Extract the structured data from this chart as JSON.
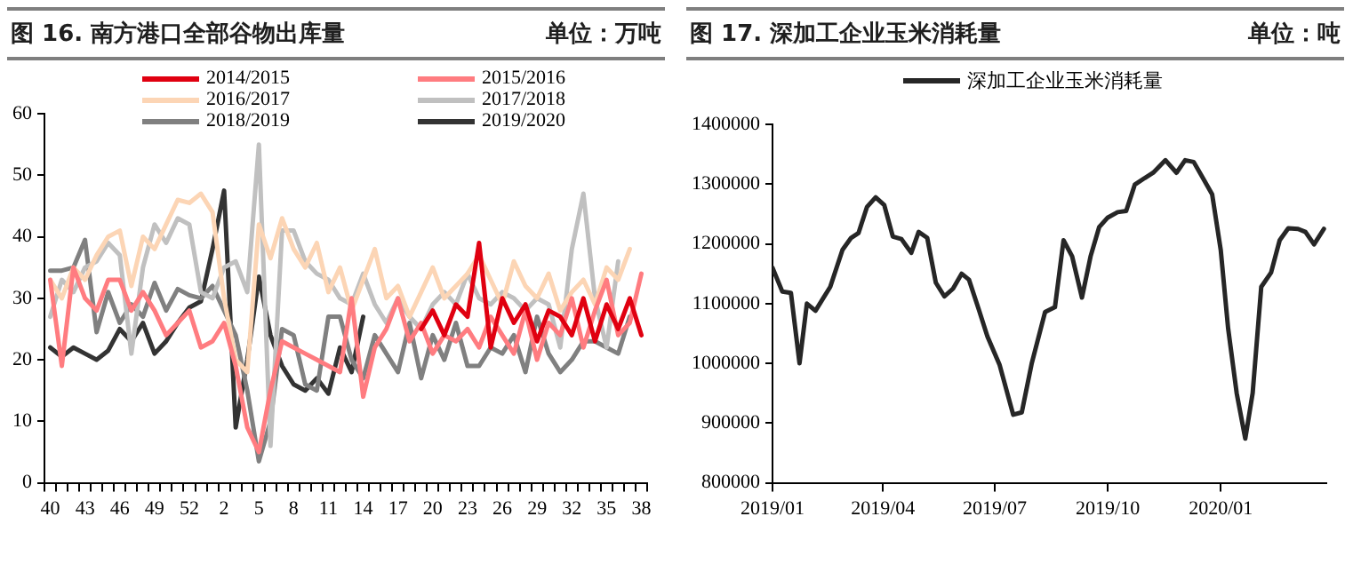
{
  "chart_data": [
    {
      "type": "line",
      "title": "图 16. 南方港口全部谷物出库量",
      "subtitle": "单位：万吨",
      "categories": [
        "40",
        null,
        null,
        "43",
        null,
        null,
        "46",
        null,
        null,
        "49",
        null,
        null,
        "52",
        null,
        null,
        "2",
        null,
        null,
        "5",
        null,
        null,
        "8",
        null,
        null,
        "11",
        null,
        null,
        "14",
        null,
        null,
        "17",
        null,
        null,
        "20",
        null,
        null,
        "23",
        null,
        null,
        "26",
        null,
        null,
        "29",
        null,
        null,
        "32",
        null,
        null,
        "35",
        null,
        null,
        "38"
      ],
      "ylim": [
        0,
        60
      ],
      "yticks": [
        0,
        10,
        20,
        30,
        40,
        50,
        60
      ],
      "grid": false,
      "legend": "top",
      "marker": "none",
      "series": [
        {
          "name": "2014/2015",
          "color": "#e00010",
          "values": [
            null,
            null,
            null,
            null,
            null,
            null,
            null,
            null,
            null,
            null,
            null,
            null,
            null,
            null,
            null,
            null,
            null,
            null,
            null,
            null,
            null,
            null,
            null,
            null,
            null,
            null,
            null,
            null,
            null,
            null,
            null,
            null,
            25,
            28,
            24,
            29,
            27,
            39,
            22,
            30,
            26,
            29,
            23,
            28,
            27,
            24,
            30,
            23,
            29,
            25,
            30,
            24
          ]
        },
        {
          "name": "2015/2016",
          "color": "#ff7c80",
          "values": [
            33,
            19,
            35,
            30,
            28,
            33,
            33,
            28,
            31,
            28,
            24,
            26,
            28,
            22,
            23,
            26,
            19,
            9,
            5,
            15,
            23,
            22,
            21,
            20,
            19,
            18,
            30,
            14,
            22,
            25,
            30,
            23,
            26,
            21,
            24,
            23,
            25,
            22,
            27,
            24,
            21,
            28,
            20,
            26,
            24,
            30,
            22,
            28,
            33,
            24,
            26,
            34
          ]
        },
        {
          "name": "2016/2017",
          "color": "#fcd5b5",
          "values": [
            33,
            30,
            35,
            33,
            37,
            40,
            41,
            32,
            40,
            38,
            42,
            46,
            45.5,
            47,
            44,
            30,
            20,
            18,
            42,
            36.5,
            43,
            38,
            35,
            39,
            31,
            35,
            28,
            33,
            38,
            30,
            32,
            27,
            31,
            35,
            30,
            32,
            34,
            37,
            33,
            29,
            36,
            32,
            30,
            34,
            28,
            31,
            33,
            29,
            35,
            33,
            38,
            null
          ]
        },
        {
          "name": "2017/2018",
          "color": "#c0c0c0",
          "values": [
            27,
            33,
            31,
            35,
            36,
            39,
            37,
            21,
            35,
            42,
            39,
            43,
            42,
            31,
            30,
            35,
            36,
            31,
            55,
            6,
            41,
            41,
            36,
            34,
            33,
            30,
            29,
            34,
            29,
            26,
            30,
            27,
            25,
            29,
            31,
            29,
            34,
            30,
            29,
            31,
            30,
            28,
            30,
            29,
            22,
            38,
            47,
            30,
            22,
            36,
            null,
            null
          ]
        },
        {
          "name": "2018/2019",
          "color": "#808080",
          "values": [
            34.5,
            34.5,
            35,
            39.5,
            24.5,
            31,
            26,
            29,
            27,
            32.5,
            28,
            31.5,
            30.5,
            30,
            32,
            28,
            24,
            15,
            3.5,
            10,
            25,
            24,
            16,
            15,
            27,
            27,
            20,
            17,
            24,
            21,
            18,
            26,
            17,
            24,
            20,
            26,
            19,
            19,
            22,
            21,
            24,
            18,
            27,
            21,
            18,
            20,
            23,
            23,
            22,
            21,
            27,
            null
          ]
        },
        {
          "name": "2019/2020",
          "color": "#333333",
          "values": [
            22,
            20.5,
            22,
            21,
            20,
            21.5,
            25,
            23,
            26,
            21,
            23,
            26,
            28.5,
            29.5,
            38,
            47.5,
            9,
            20,
            33.5,
            24,
            19,
            16,
            15,
            17,
            14.5,
            22,
            18,
            27,
            null,
            null,
            null,
            null,
            null,
            null,
            null,
            null,
            null,
            null,
            null,
            null,
            null,
            null,
            null,
            null,
            null,
            null,
            null,
            null,
            null,
            null,
            null,
            null
          ]
        }
      ]
    },
    {
      "type": "line",
      "title": "图 17. 深加工企业玉米消耗量",
      "subtitle": "单位：吨",
      "x": [
        "2019-01-01",
        "2019-01-09",
        "2019-01-16",
        "2019-01-23",
        "2019-01-29",
        "2019-02-05",
        "2019-02-11",
        "2019-02-17",
        "2019-02-27",
        "2019-03-06",
        "2019-03-12",
        "2019-03-19",
        "2019-03-26",
        "2019-04-02",
        "2019-04-09",
        "2019-04-16",
        "2019-04-24",
        "2019-04-30",
        "2019-05-07",
        "2019-05-14",
        "2019-05-21",
        "2019-05-28",
        "2019-06-04",
        "2019-06-10",
        "2019-06-18",
        "2019-06-25",
        "2019-07-05",
        "2019-07-16",
        "2019-07-23",
        "2019-07-31",
        "2019-08-11",
        "2019-08-19",
        "2019-08-26",
        "2019-09-02",
        "2019-09-10",
        "2019-09-17",
        "2019-09-24",
        "2019-10-01",
        "2019-10-09",
        "2019-10-16",
        "2019-10-23",
        "2019-10-31",
        "2019-11-07",
        "2019-11-17",
        "2019-11-26",
        "2019-12-03",
        "2019-12-10",
        "2019-12-17",
        "2019-12-25",
        "2020-01-01",
        "2020-01-07",
        "2020-01-14",
        "2020-01-21",
        "2020-01-27",
        "2020-02-03",
        "2020-02-11",
        "2020-02-18",
        "2020-02-25",
        "2020-03-04",
        "2020-03-10",
        "2020-03-17",
        "2020-03-25"
      ],
      "xlim": [
        "2019-01-01",
        "2020-03-27"
      ],
      "xticks": [
        {
          "value": "2019-01-01",
          "label": "2019/01"
        },
        {
          "value": "2019-04-01",
          "label": "2019/04"
        },
        {
          "value": "2019-07-01",
          "label": "2019/07"
        },
        {
          "value": "2019-10-01",
          "label": "2019/10"
        },
        {
          "value": "2020-01-01",
          "label": "2020/01"
        }
      ],
      "ylim": [
        800000,
        1400000
      ],
      "yticks": [
        800000,
        900000,
        1000000,
        1100000,
        1200000,
        1300000,
        1400000
      ],
      "grid": false,
      "legend": "top",
      "marker": "none",
      "series": [
        {
          "name": "深加工企业玉米消耗量",
          "color": "#262626",
          "values": [
            1160000,
            1120000,
            1118000,
            1000000,
            1100000,
            1088000,
            1108000,
            1128000,
            1190000,
            1210000,
            1218000,
            1262000,
            1278000,
            1265000,
            1212000,
            1208000,
            1185000,
            1220000,
            1210000,
            1135000,
            1112000,
            1125000,
            1150000,
            1140000,
            1090000,
            1045000,
            997000,
            914000,
            918000,
            999000,
            1086000,
            1094000,
            1206000,
            1179000,
            1110000,
            1179000,
            1228000,
            1244000,
            1253000,
            1255000,
            1299000,
            1310000,
            1319000,
            1340000,
            1319000,
            1340000,
            1337000,
            1312000,
            1283000,
            1190000,
            1059000,
            950000,
            874000,
            950000,
            1128000,
            1152000,
            1206000,
            1226000,
            1225000,
            1220000,
            1199000,
            1225000
          ]
        }
      ]
    }
  ]
}
